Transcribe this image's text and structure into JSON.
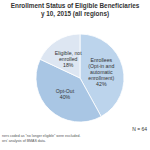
{
  "chart_data": {
    "type": "pie",
    "title": "Enrollment Status of Eligible Beneficiaries",
    "subtitle": "y 10, 2015 (all regions)",
    "categories": [
      "Enrollees (Opt-in and automatic enrollment)",
      "Opt-Out",
      "Eligible, not enrolled"
    ],
    "values": [
      42,
      40,
      18
    ],
    "value_labels": [
      "42%",
      "40%",
      "18%"
    ],
    "colors": [
      "#bcd4ec",
      "#a9c6e4",
      "#dde6f2"
    ],
    "data_labels": true,
    "annotations": [
      "N = 64",
      "ners coded as \"no longer eligible\" were excluded.",
      "ors' analysis of BMAS data."
    ]
  }
}
